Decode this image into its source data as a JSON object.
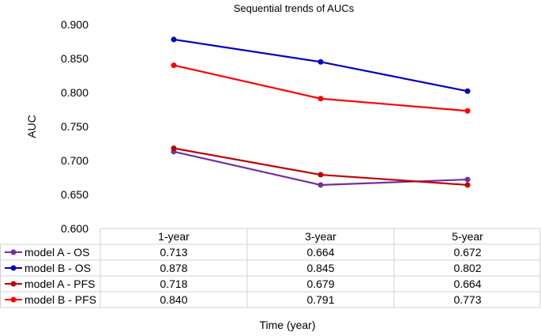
{
  "chart_data": {
    "type": "line",
    "title": "Sequential trends of AUCs",
    "xlabel": "Time (year)",
    "ylabel": "AUC",
    "categories": [
      "1-year",
      "3-year",
      "5-year"
    ],
    "ylim": [
      0.6,
      0.9
    ],
    "yticks": [
      "0.900",
      "0.850",
      "0.800",
      "0.750",
      "0.700",
      "0.650",
      "0.600"
    ],
    "grid": false,
    "legend": "data-table-left",
    "series": [
      {
        "name": "model A - OS",
        "values": [
          0.713,
          0.664,
          0.672
        ],
        "labels": [
          "0.713",
          "0.664",
          "0.672"
        ],
        "color": "#7030A0"
      },
      {
        "name": "model B - OS",
        "values": [
          0.878,
          0.845,
          0.802
        ],
        "labels": [
          "0.878",
          "0.845",
          "0.802"
        ],
        "color": "#0000C0"
      },
      {
        "name": "model A - PFS",
        "values": [
          0.718,
          0.679,
          0.664
        ],
        "labels": [
          "0.718",
          "0.679",
          "0.664"
        ],
        "color": "#C00000"
      },
      {
        "name": "model B - PFS",
        "values": [
          0.84,
          0.791,
          0.773
        ],
        "labels": [
          "0.840",
          "0.791",
          "0.773"
        ],
        "color": "#FF0000"
      }
    ]
  }
}
